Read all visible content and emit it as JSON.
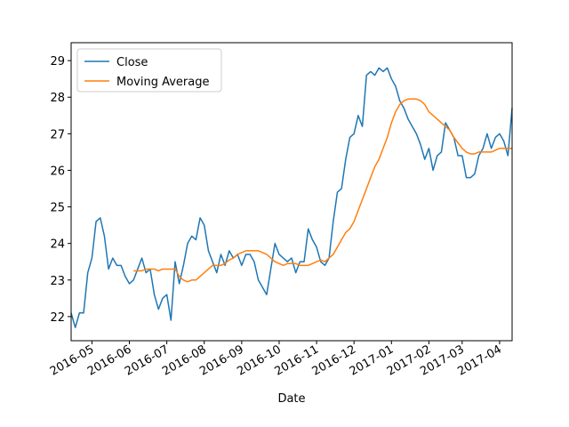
{
  "chart_data": {
    "type": "line",
    "x_label": "Date",
    "categories": [
      null,
      null,
      null,
      null,
      null,
      "2016-05",
      null,
      null,
      null,
      null,
      null,
      null,
      null,
      null,
      "2016-06",
      null,
      null,
      null,
      null,
      null,
      null,
      null,
      null,
      "2016-07",
      null,
      null,
      null,
      null,
      null,
      null,
      null,
      null,
      "2016-08",
      null,
      null,
      null,
      null,
      null,
      null,
      null,
      null,
      "2016-09",
      null,
      null,
      null,
      null,
      null,
      null,
      null,
      null,
      "2016-10",
      null,
      null,
      null,
      null,
      null,
      null,
      null,
      null,
      "2016-11",
      null,
      null,
      null,
      null,
      null,
      null,
      null,
      null,
      "2016-12",
      null,
      null,
      null,
      null,
      null,
      null,
      null,
      null,
      "2017-01",
      null,
      null,
      null,
      null,
      null,
      null,
      null,
      null,
      "2017-02",
      null,
      null,
      null,
      null,
      null,
      null,
      null,
      "2017-03",
      null,
      null,
      null,
      null,
      null,
      null,
      null,
      null,
      "2017-04",
      null,
      null,
      null
    ],
    "series": [
      {
        "name": "Close",
        "color": "#1f77b4",
        "values": [
          22.1,
          21.7,
          22.1,
          22.1,
          23.2,
          23.6,
          24.6,
          24.7,
          24.2,
          23.3,
          23.6,
          23.4,
          23.4,
          23.1,
          22.9,
          23.0,
          23.3,
          23.6,
          23.2,
          23.3,
          22.6,
          22.2,
          22.5,
          22.6,
          21.9,
          23.5,
          22.9,
          23.4,
          24.0,
          24.2,
          24.1,
          24.7,
          24.5,
          23.8,
          23.5,
          23.2,
          23.7,
          23.4,
          23.8,
          23.6,
          23.7,
          23.4,
          23.7,
          23.7,
          23.5,
          23.0,
          22.8,
          22.6,
          23.3,
          24.0,
          23.7,
          23.6,
          23.5,
          23.6,
          23.2,
          23.5,
          23.5,
          24.4,
          24.1,
          23.9,
          23.5,
          23.4,
          23.6,
          24.6,
          25.4,
          25.5,
          26.3,
          26.9,
          27.0,
          27.5,
          27.2,
          28.6,
          28.7,
          28.6,
          28.8,
          28.7,
          28.8,
          28.5,
          28.3,
          27.9,
          27.7,
          27.4,
          27.2,
          27.0,
          26.7,
          26.3,
          26.6,
          26.0,
          26.4,
          26.5,
          27.3,
          27.1,
          26.9,
          26.4,
          26.4,
          25.8,
          25.8,
          25.9,
          26.4,
          26.6,
          27.0,
          26.6,
          26.9,
          27.0,
          26.8,
          26.4,
          27.7
        ]
      },
      {
        "name": "Moving Average",
        "color": "#ff7f0e",
        "values": [
          null,
          null,
          null,
          null,
          null,
          null,
          null,
          null,
          null,
          null,
          null,
          null,
          null,
          null,
          null,
          23.25,
          23.25,
          23.25,
          23.3,
          23.3,
          23.3,
          23.25,
          23.3,
          23.3,
          23.3,
          23.3,
          23.1,
          23.0,
          22.95,
          23.0,
          23.0,
          23.1,
          23.2,
          23.3,
          23.4,
          23.4,
          23.4,
          23.45,
          23.55,
          23.6,
          23.7,
          23.75,
          23.8,
          23.8,
          23.8,
          23.8,
          23.75,
          23.7,
          23.6,
          23.5,
          23.45,
          23.4,
          23.45,
          23.45,
          23.45,
          23.4,
          23.4,
          23.4,
          23.45,
          23.5,
          23.55,
          23.5,
          23.6,
          23.7,
          23.9,
          24.1,
          24.3,
          24.4,
          24.6,
          24.9,
          25.2,
          25.5,
          25.8,
          26.1,
          26.3,
          26.6,
          26.9,
          27.3,
          27.6,
          27.8,
          27.9,
          27.95,
          27.95,
          27.95,
          27.9,
          27.8,
          27.6,
          27.5,
          27.4,
          27.3,
          27.2,
          27.1,
          26.9,
          26.75,
          26.6,
          26.5,
          26.45,
          26.45,
          26.5,
          26.5,
          26.5,
          26.5,
          26.55,
          26.6,
          26.6,
          26.6,
          26.6
        ]
      }
    ],
    "ylim": [
      21.34,
      29.49
    ],
    "yticks": [
      22,
      23,
      24,
      25,
      26,
      27,
      28,
      29
    ],
    "legend": "upper left"
  }
}
